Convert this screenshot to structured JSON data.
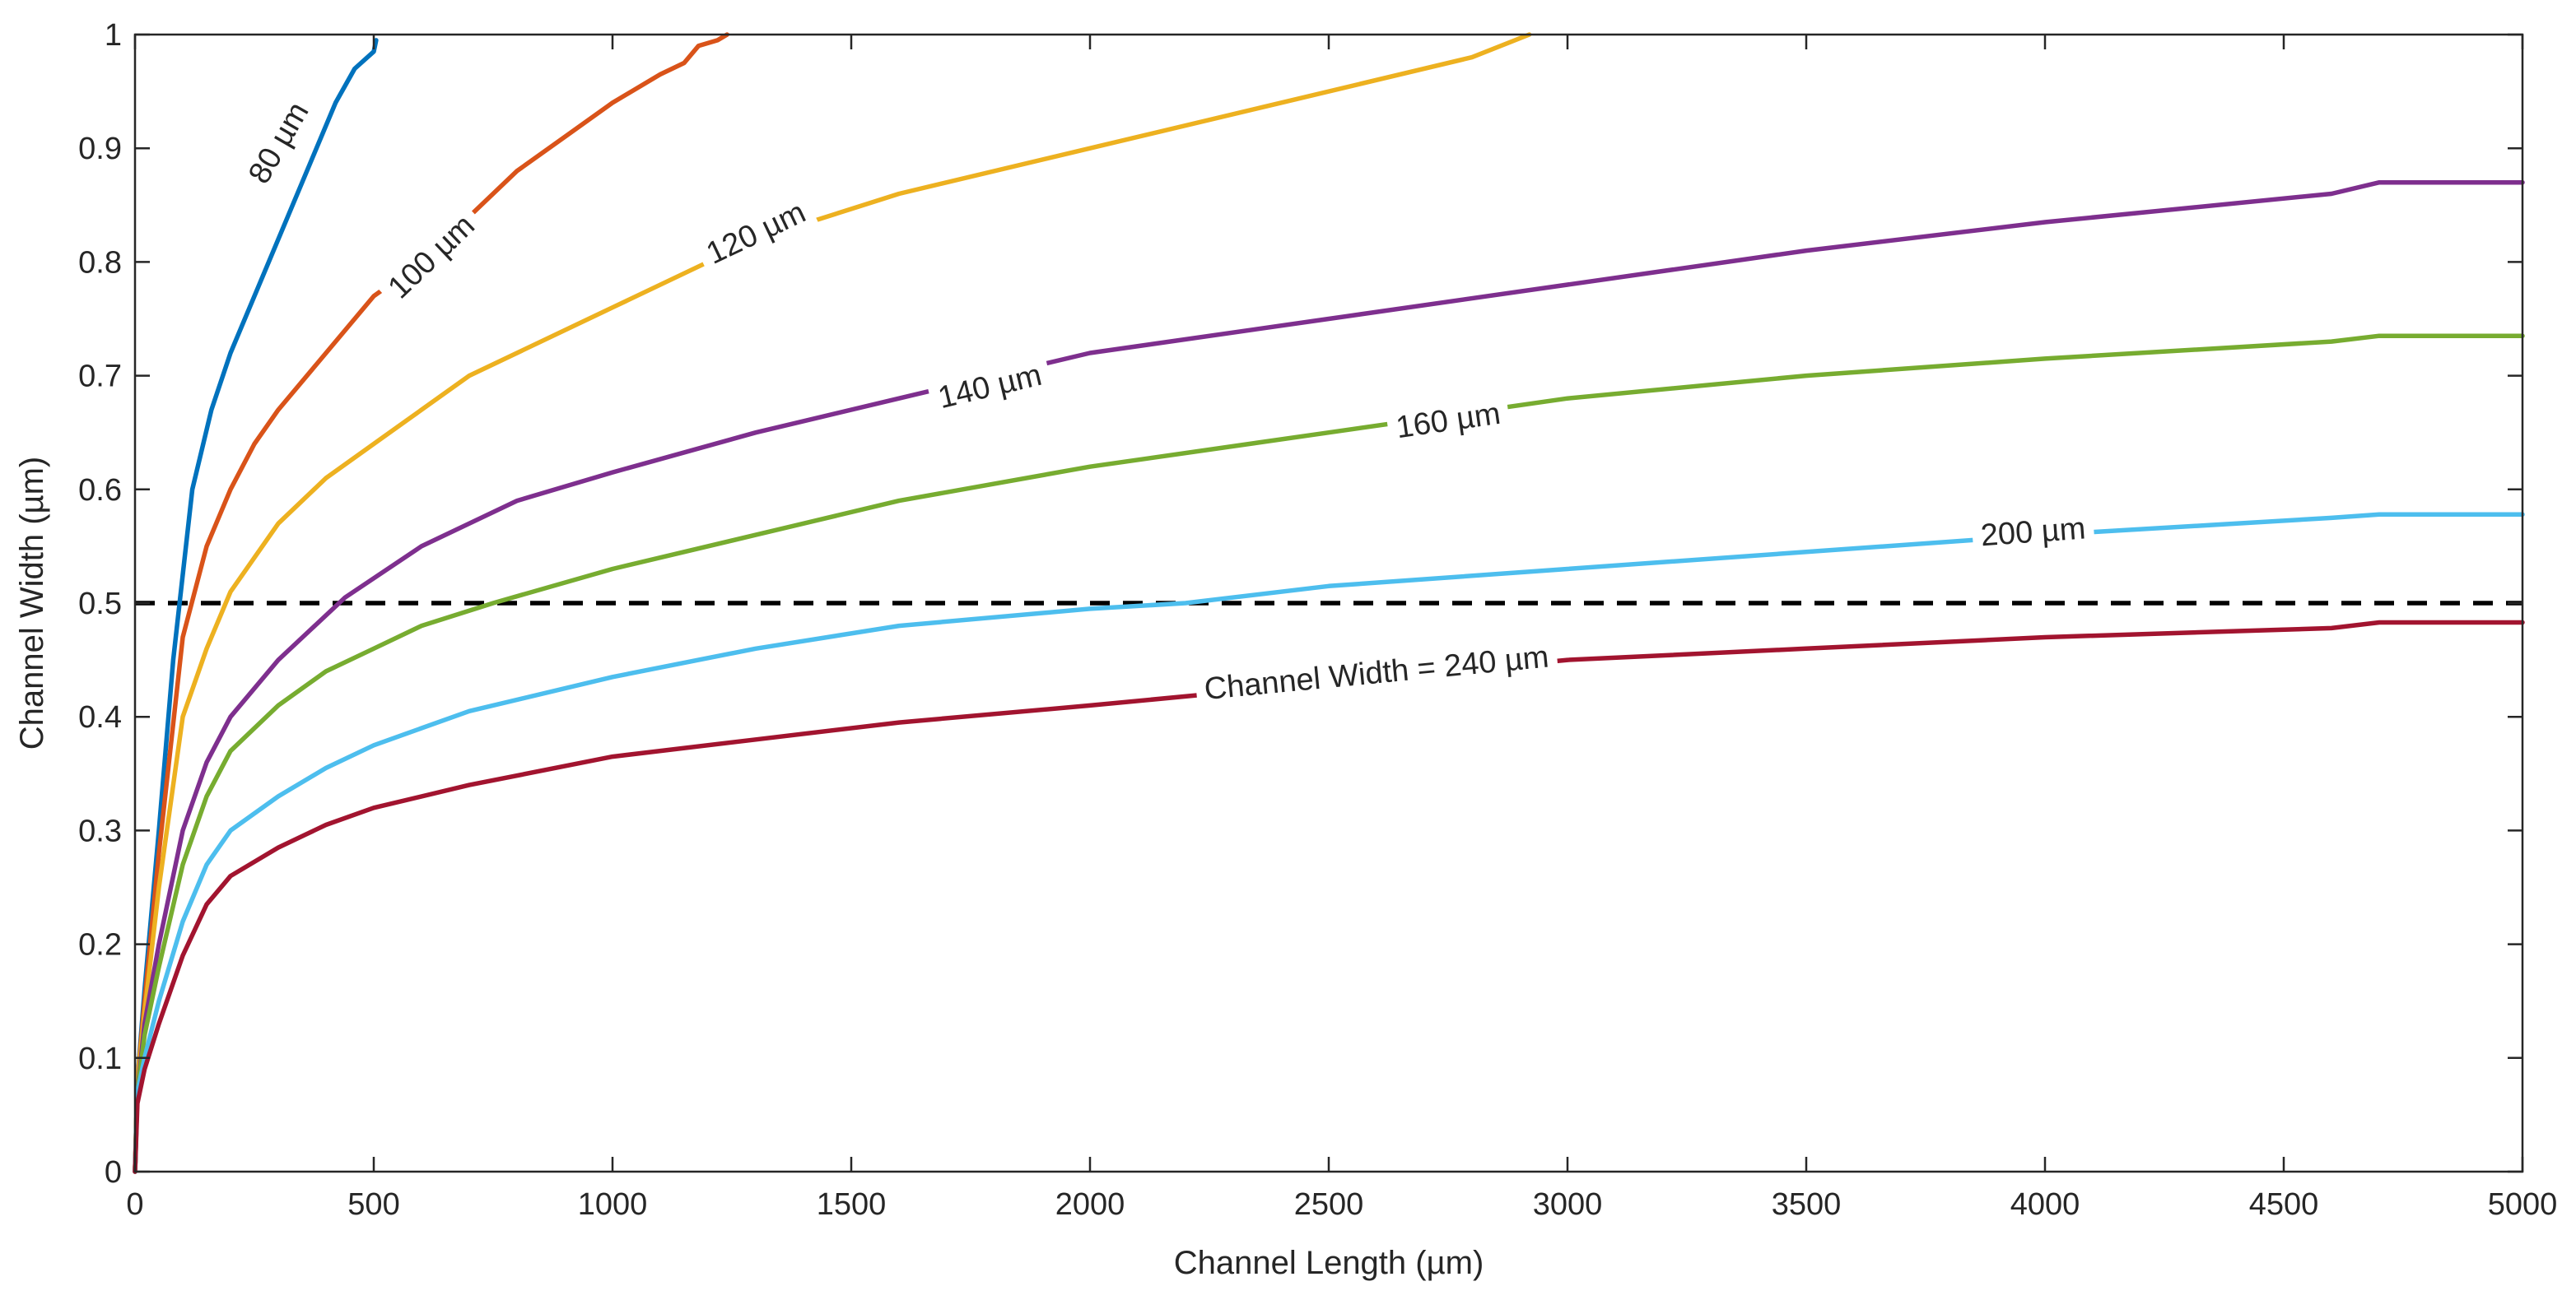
{
  "chart_data": {
    "type": "line",
    "title": "",
    "xlabel": "Channel Length (µm)",
    "ylabel": "Channel Width (µm)",
    "xlim": [
      0,
      5000
    ],
    "ylim": [
      0,
      1
    ],
    "xticks": [
      0,
      500,
      1000,
      1500,
      2000,
      2500,
      3000,
      3500,
      4000,
      4500,
      5000
    ],
    "yticks": [
      0,
      0.1,
      0.2,
      0.3,
      0.4,
      0.5,
      0.6,
      0.7,
      0.8,
      0.9,
      1
    ],
    "xtick_labels": [
      "0",
      "500",
      "1000",
      "1500",
      "2000",
      "2500",
      "3000",
      "3500",
      "4000",
      "4500",
      "5000"
    ],
    "ytick_labels": [
      "0",
      "0.1",
      "0.2",
      "0.3",
      "0.4",
      "0.5",
      "0.6",
      "0.7",
      "0.8",
      "0.9",
      "1"
    ],
    "grid": false,
    "reference_line": {
      "y": 0.5,
      "style": "dashed",
      "color": "#000000"
    },
    "series": [
      {
        "name": "80 µm",
        "label": "80 µm",
        "label_at": [
          300,
          0.905
        ],
        "color": "#0072BD",
        "x": [
          0,
          5,
          20,
          50,
          80,
          120,
          160,
          200,
          250,
          300,
          350,
          380,
          420,
          460,
          500,
          505
        ],
        "y": [
          0,
          0.08,
          0.16,
          0.3,
          0.45,
          0.6,
          0.67,
          0.72,
          0.77,
          0.82,
          0.87,
          0.9,
          0.94,
          0.97,
          0.985,
          0.995
        ]
      },
      {
        "name": "100 µm",
        "label": "100 µm",
        "label_at": [
          620,
          0.805
        ],
        "color": "#D95319",
        "x": [
          0,
          5,
          20,
          50,
          100,
          150,
          200,
          250,
          300,
          400,
          500,
          600,
          700,
          800,
          900,
          1000,
          1100,
          1150,
          1180,
          1220,
          1240
        ],
        "y": [
          0,
          0.08,
          0.15,
          0.28,
          0.47,
          0.55,
          0.6,
          0.64,
          0.67,
          0.72,
          0.77,
          0.8,
          0.84,
          0.88,
          0.91,
          0.94,
          0.965,
          0.975,
          0.99,
          0.995,
          1
        ]
      },
      {
        "name": "120 µm",
        "label": "120 µm",
        "label_at": [
          1300,
          0.826
        ],
        "color": "#EDB120",
        "x": [
          0,
          5,
          20,
          50,
          100,
          150,
          200,
          300,
          400,
          500,
          700,
          1000,
          1300,
          1600,
          2000,
          2400,
          2800,
          2920
        ],
        "y": [
          0,
          0.08,
          0.14,
          0.25,
          0.4,
          0.46,
          0.51,
          0.57,
          0.61,
          0.64,
          0.7,
          0.76,
          0.82,
          0.86,
          0.9,
          0.94,
          0.98,
          1
        ]
      },
      {
        "name": "140 µm",
        "label": "140 µm",
        "label_at": [
          1790,
          0.691
        ],
        "color": "#7E2F8E",
        "x": [
          0,
          5,
          20,
          50,
          100,
          150,
          200,
          300,
          440,
          600,
          800,
          1000,
          1300,
          1600,
          2000,
          2500,
          3000,
          3500,
          4000,
          4600,
          4700,
          5000
        ],
        "y": [
          0,
          0.07,
          0.13,
          0.2,
          0.3,
          0.36,
          0.4,
          0.45,
          0.505,
          0.55,
          0.59,
          0.615,
          0.65,
          0.68,
          0.72,
          0.75,
          0.78,
          0.81,
          0.835,
          0.86,
          0.87,
          0.87
        ]
      },
      {
        "name": "160 µm",
        "label": "160 µm",
        "label_at": [
          2750,
          0.661
        ],
        "color": "#77AC30",
        "x": [
          0,
          5,
          20,
          50,
          100,
          150,
          200,
          300,
          400,
          500,
          600,
          750,
          1000,
          1300,
          1600,
          2000,
          2500,
          3000,
          3500,
          4000,
          4600,
          4700,
          5000
        ],
        "y": [
          0,
          0.07,
          0.12,
          0.18,
          0.27,
          0.33,
          0.37,
          0.41,
          0.44,
          0.46,
          0.48,
          0.5,
          0.53,
          0.56,
          0.59,
          0.62,
          0.65,
          0.68,
          0.7,
          0.715,
          0.73,
          0.735,
          0.735
        ]
      },
      {
        "name": "200 µm",
        "label": "200 µm",
        "label_at": [
          3975,
          0.563
        ],
        "color": "#4DBEEE",
        "x": [
          0,
          5,
          20,
          50,
          100,
          150,
          200,
          300,
          400,
          500,
          700,
          1000,
          1300,
          1600,
          2000,
          2200,
          2500,
          3000,
          3500,
          4000,
          4600,
          4700,
          5000
        ],
        "y": [
          0,
          0.07,
          0.1,
          0.15,
          0.22,
          0.27,
          0.3,
          0.33,
          0.355,
          0.375,
          0.405,
          0.435,
          0.46,
          0.48,
          0.495,
          0.5,
          0.515,
          0.53,
          0.545,
          0.56,
          0.575,
          0.578,
          0.578
        ]
      },
      {
        "name": "240 µm",
        "label": "Channel Width = 240 µm",
        "label_at": [
          2600,
          0.439
        ],
        "color": "#A2142F",
        "x": [
          0,
          5,
          20,
          50,
          100,
          150,
          200,
          300,
          400,
          500,
          700,
          1000,
          1300,
          1600,
          2000,
          2500,
          3000,
          3500,
          4000,
          4600,
          4700,
          5000
        ],
        "y": [
          0,
          0.06,
          0.09,
          0.13,
          0.19,
          0.235,
          0.26,
          0.285,
          0.305,
          0.32,
          0.34,
          0.365,
          0.38,
          0.395,
          0.41,
          0.43,
          0.45,
          0.46,
          0.47,
          0.478,
          0.483,
          0.483
        ]
      }
    ]
  }
}
